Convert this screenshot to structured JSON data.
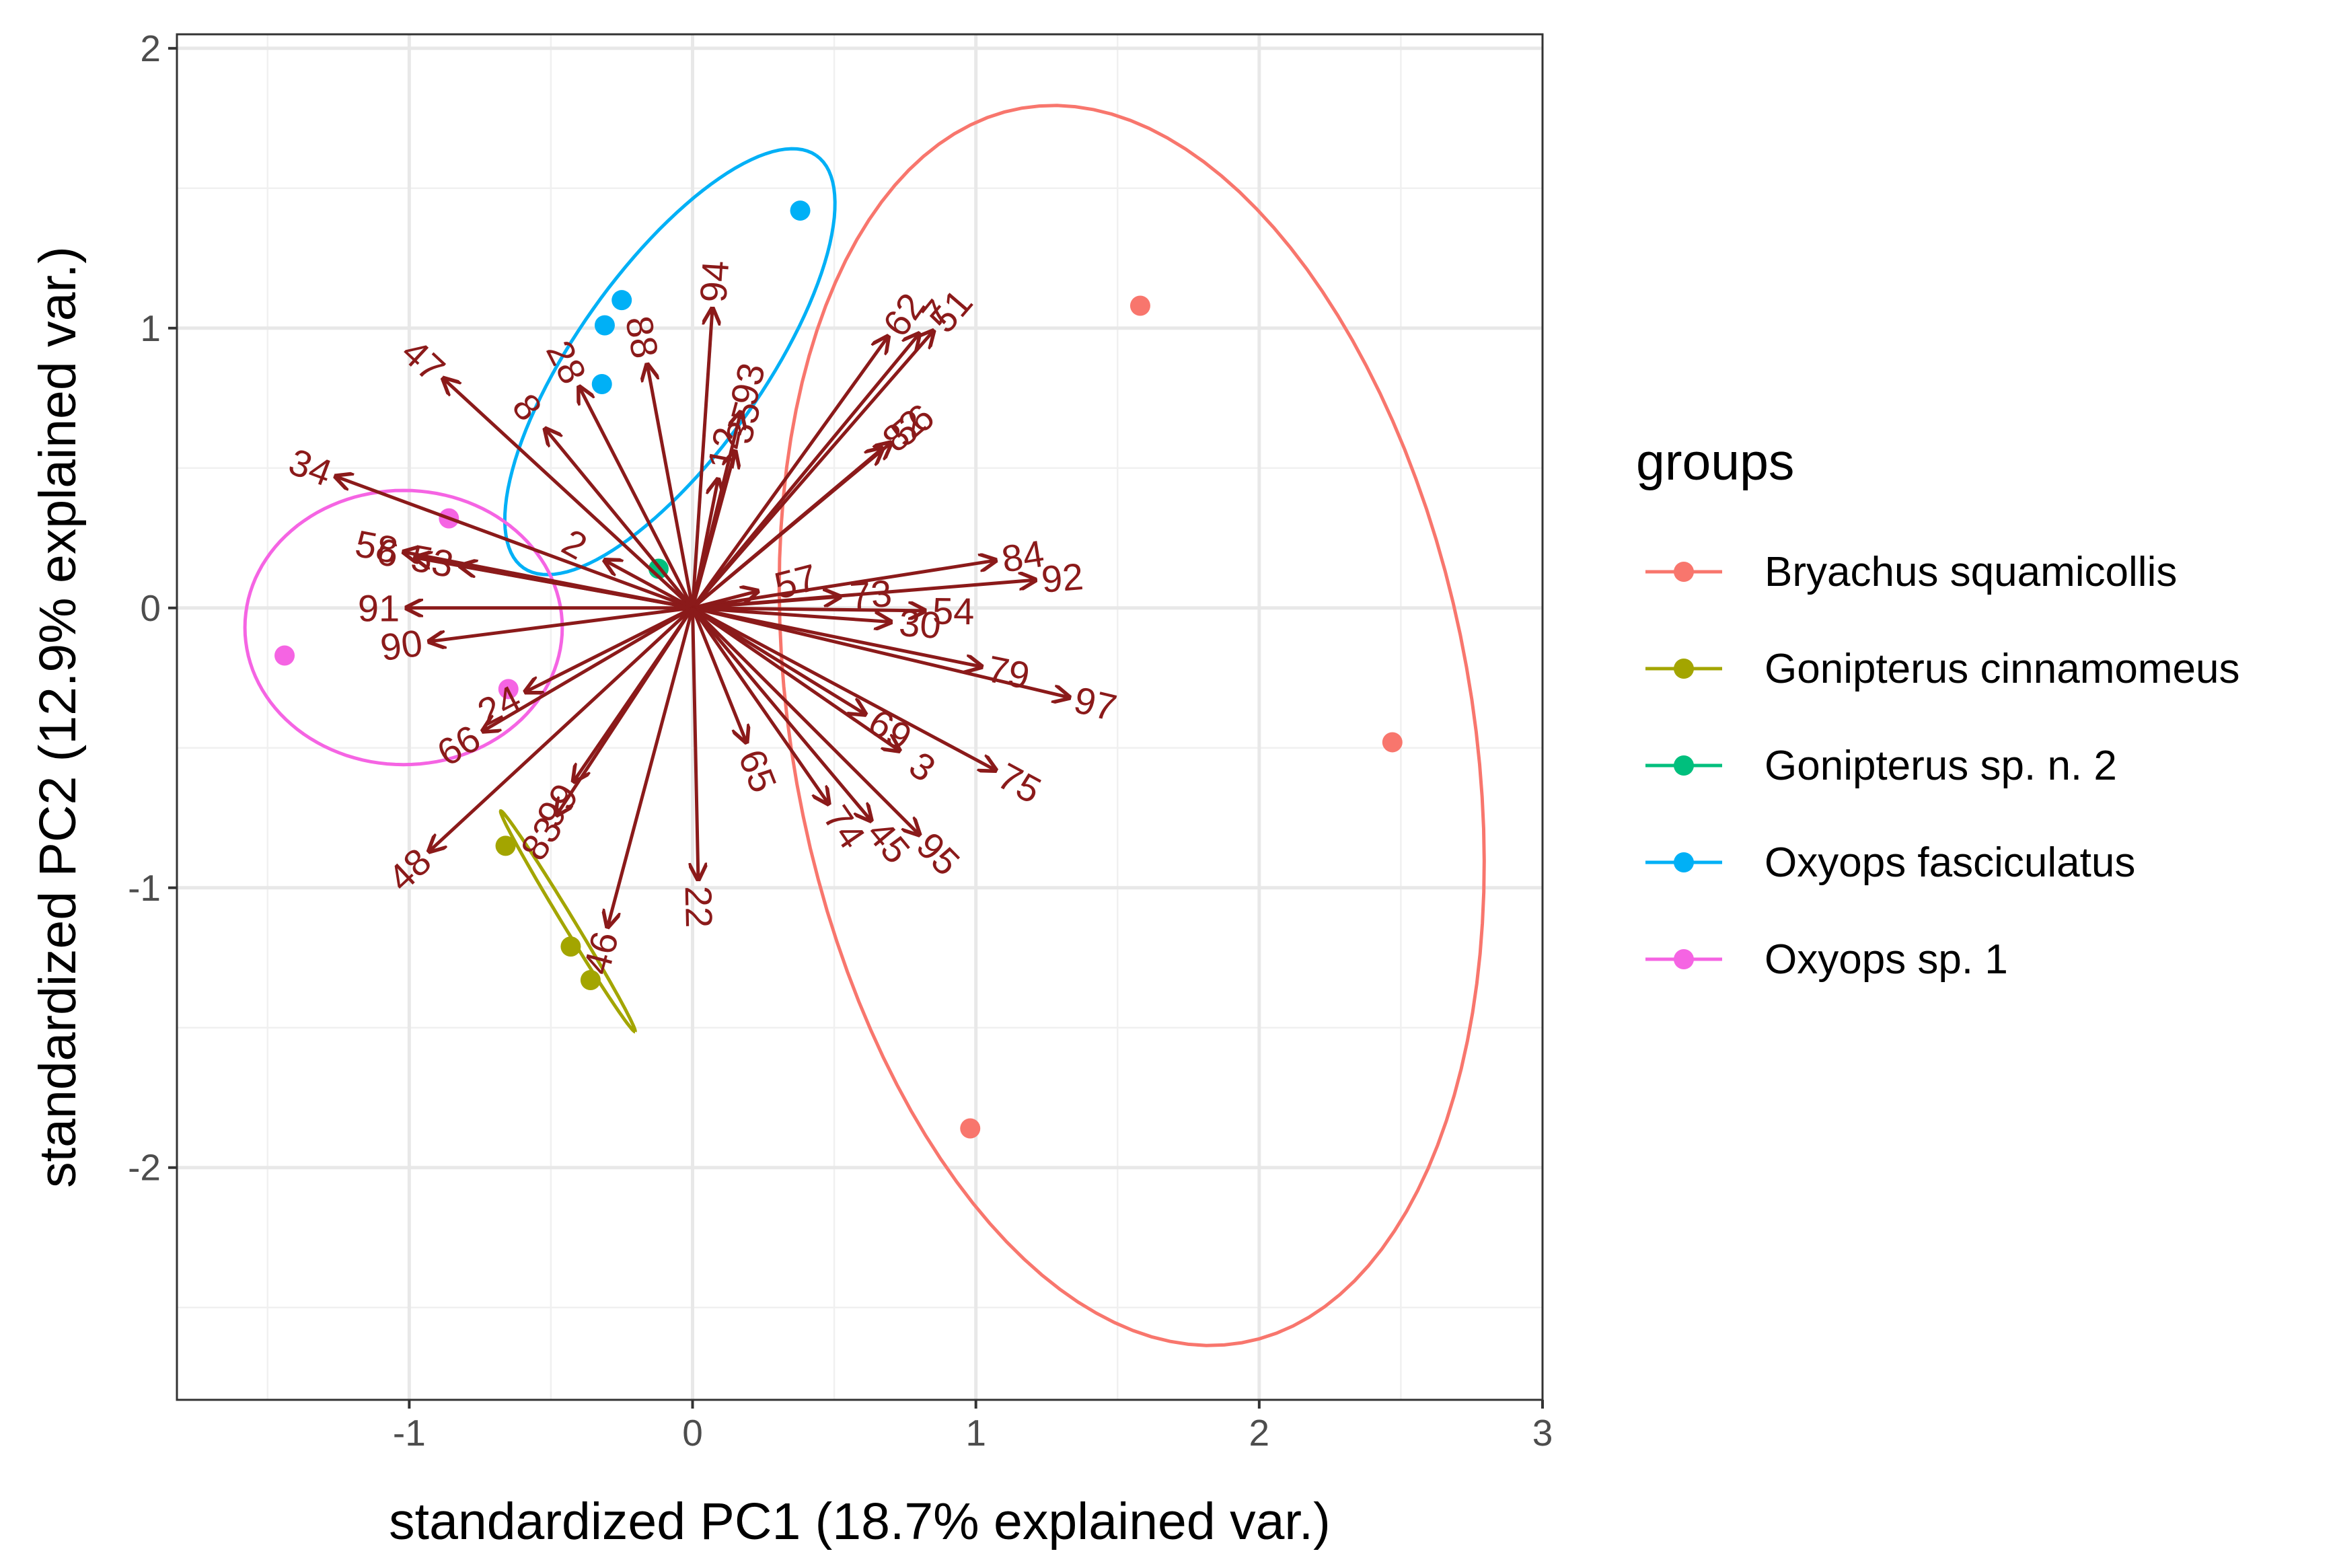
{
  "chart_data": {
    "type": "scatter",
    "subtype": "pca-biplot",
    "xlabel": "standardized PC1 (18.7% explained var.)",
    "ylabel": "standardized PC2 (12.9% explained var.)",
    "xlim": [
      -1.82,
      3.0
    ],
    "ylim": [
      -2.83,
      2.05
    ],
    "xticks": [
      -1,
      0,
      1,
      2,
      3
    ],
    "yticks": [
      -2,
      -1,
      0,
      1,
      2
    ],
    "xtick_labels": [
      "-1",
      "0",
      "1",
      "2",
      "3"
    ],
    "ytick_labels": [
      "-2",
      "-1",
      "0",
      "1",
      "2"
    ],
    "grid": true,
    "legend_position": "right",
    "legend_title": "groups",
    "arrow_color": "#8B1A1A",
    "groups": [
      {
        "name": "Bryachus squamicollis",
        "color": "#F8766D",
        "points": [
          [
            1.58,
            1.08
          ],
          [
            2.47,
            -0.48
          ],
          [
            0.98,
            -1.86
          ]
        ],
        "ellipse": {
          "cx": 1.55,
          "cy": -0.42,
          "rx": 1.2,
          "ry": 2.24,
          "angle": 10
        }
      },
      {
        "name": "Gonipterus cinnamomeus",
        "color": "#A3A500",
        "points": [
          [
            -0.66,
            -0.85
          ],
          [
            -0.43,
            -1.21
          ],
          [
            -0.36,
            -1.33
          ]
        ],
        "ellipse": {
          "cx": -0.44,
          "cy": -1.12,
          "rx": 0.46,
          "ry": 0.02,
          "angle": -59
        }
      },
      {
        "name": "Gonipterus sp. n. 2",
        "color": "#00BF7D",
        "points": [
          [
            -0.12,
            0.14
          ]
        ],
        "ellipse": null
      },
      {
        "name": "Oxyops fasciculatus",
        "color": "#00B0F6",
        "points": [
          [
            0.38,
            1.42
          ],
          [
            -0.25,
            1.1
          ],
          [
            -0.31,
            1.01
          ],
          [
            -0.32,
            0.8
          ]
        ],
        "ellipse": {
          "cx": -0.08,
          "cy": 0.88,
          "rx": 0.9,
          "ry": 0.33,
          "angle": 55
        }
      },
      {
        "name": "Oxyops sp. 1",
        "color": "#F564E3",
        "points": [
          [
            -0.86,
            0.32
          ],
          [
            -1.44,
            -0.17
          ],
          [
            -0.65,
            -0.29
          ]
        ],
        "ellipse": {
          "cx": -1.02,
          "cy": -0.07,
          "rx": 0.56,
          "ry": 0.49,
          "angle": 0
        }
      }
    ],
    "loadings": [
      {
        "label": "94",
        "x": 0.07,
        "y": 1.07
      },
      {
        "label": "62",
        "x": 0.69,
        "y": 0.97
      },
      {
        "label": "7",
        "x": 0.8,
        "y": 0.98
      },
      {
        "label": "51",
        "x": 0.85,
        "y": 0.99
      },
      {
        "label": "47",
        "x": -0.88,
        "y": 0.82
      },
      {
        "label": "28",
        "x": -0.4,
        "y": 0.79
      },
      {
        "label": "88",
        "x": -0.16,
        "y": 0.87
      },
      {
        "label": "8",
        "x": -0.52,
        "y": 0.64
      },
      {
        "label": "93",
        "x": 0.17,
        "y": 0.7
      },
      {
        "label": "35",
        "x": 0.15,
        "y": 0.56
      },
      {
        "label": "12",
        "x": 0.09,
        "y": 0.46
      },
      {
        "label": "82",
        "x": 0.67,
        "y": 0.57
      },
      {
        "label": "56",
        "x": 0.7,
        "y": 0.59
      },
      {
        "label": "34",
        "x": -1.26,
        "y": 0.47
      },
      {
        "label": "58",
        "x": -1.02,
        "y": 0.2
      },
      {
        "label": "6",
        "x": -0.98,
        "y": 0.18
      },
      {
        "label": "53",
        "x": -0.82,
        "y": 0.15
      },
      {
        "label": "2",
        "x": -0.31,
        "y": 0.17
      },
      {
        "label": "91",
        "x": -1.01,
        "y": 0.0
      },
      {
        "label": "90",
        "x": -0.93,
        "y": -0.12
      },
      {
        "label": "84",
        "x": 1.07,
        "y": 0.17
      },
      {
        "label": "92",
        "x": 1.21,
        "y": 0.1
      },
      {
        "label": "57",
        "x": 0.23,
        "y": 0.06
      },
      {
        "label": "73",
        "x": 0.52,
        "y": 0.04
      },
      {
        "label": "54",
        "x": 0.82,
        "y": -0.01
      },
      {
        "label": "30",
        "x": 0.7,
        "y": -0.05
      },
      {
        "label": "79",
        "x": 1.02,
        "y": -0.21
      },
      {
        "label": "97",
        "x": 1.33,
        "y": -0.32
      },
      {
        "label": "75",
        "x": 1.07,
        "y": -0.58
      },
      {
        "label": "69",
        "x": 0.61,
        "y": -0.38
      },
      {
        "label": "3",
        "x": 0.73,
        "y": -0.51
      },
      {
        "label": "95",
        "x": 0.8,
        "y": -0.81
      },
      {
        "label": "45",
        "x": 0.63,
        "y": -0.76
      },
      {
        "label": "74",
        "x": 0.48,
        "y": -0.7
      },
      {
        "label": "65",
        "x": 0.19,
        "y": -0.48
      },
      {
        "label": "22",
        "x": 0.02,
        "y": -0.97
      },
      {
        "label": "24",
        "x": -0.59,
        "y": -0.3
      },
      {
        "label": "66",
        "x": -0.74,
        "y": -0.44
      },
      {
        "label": "48",
        "x": -0.93,
        "y": -0.87
      },
      {
        "label": "83",
        "x": -0.48,
        "y": -0.74
      },
      {
        "label": "99",
        "x": -0.42,
        "y": -0.62
      },
      {
        "label": "46",
        "x": -0.3,
        "y": -1.14
      }
    ]
  }
}
